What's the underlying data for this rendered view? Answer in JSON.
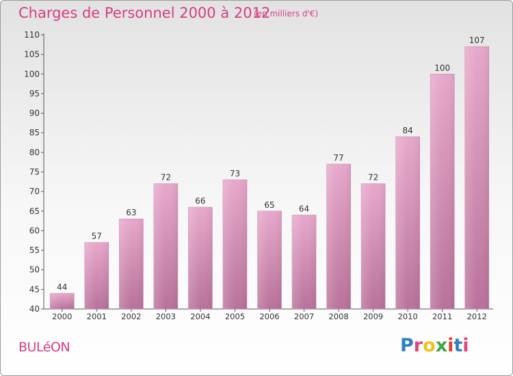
{
  "header": {
    "title": "Charges de Personnel 2000 à 2012",
    "subtitle": "(en milliers d'€)"
  },
  "footer": {
    "commune": "BULéON",
    "brand": "Proxiti",
    "brand_colors": [
      "#2e7fc0",
      "#e0457b",
      "#f0c020",
      "#3fa64a",
      "#e24030",
      "#2e7fc0",
      "#e0457b"
    ]
  },
  "colors": {
    "bar_top": "#e7a8cb",
    "bar_bottom": "#b9729a",
    "accent": "#d63d83"
  },
  "chart_data": {
    "type": "bar",
    "categories": [
      "2000",
      "2001",
      "2002",
      "2003",
      "2004",
      "2005",
      "2006",
      "2007",
      "2008",
      "2009",
      "2010",
      "2011",
      "2012"
    ],
    "values": [
      44,
      57,
      63,
      72,
      66,
      73,
      65,
      64,
      77,
      72,
      84,
      100,
      107
    ],
    "data_labels": [
      "44",
      "57",
      "63",
      "72",
      "66",
      "73",
      "65",
      "64",
      "77",
      "72",
      "84",
      "100",
      "107"
    ],
    "yticks": [
      "40",
      "45",
      "50",
      "55",
      "60",
      "65",
      "70",
      "75",
      "80",
      "85",
      "90",
      "95",
      "100",
      "105",
      "110"
    ],
    "ylim": [
      40,
      110
    ],
    "grid": false
  }
}
